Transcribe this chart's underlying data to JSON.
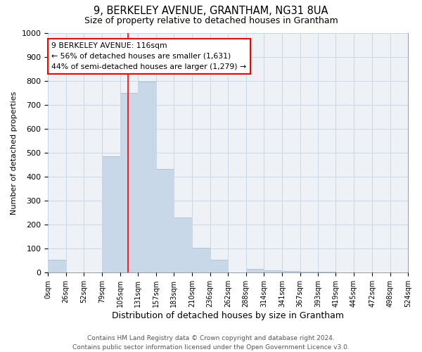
{
  "title": "9, BERKELEY AVENUE, GRANTHAM, NG31 8UA",
  "subtitle": "Size of property relative to detached houses in Grantham",
  "xlabel": "Distribution of detached houses by size in Grantham",
  "ylabel": "Number of detached properties",
  "bar_color": "#c8d8e8",
  "bar_edge_color": "#a8bece",
  "grid_color": "#c8d8e8",
  "background_color": "#eef2f7",
  "bin_edges": [
    0,
    26,
    52,
    79,
    105,
    131,
    157,
    183,
    210,
    236,
    262,
    288,
    314,
    341,
    367,
    393,
    419,
    445,
    472,
    498,
    524
  ],
  "bar_heights": [
    55,
    0,
    0,
    486,
    748,
    795,
    432,
    230,
    105,
    55,
    0,
    15,
    10,
    8,
    5,
    3,
    2,
    2,
    1,
    1
  ],
  "red_line_x": 116,
  "ylim": [
    0,
    1000
  ],
  "yticks": [
    0,
    100,
    200,
    300,
    400,
    500,
    600,
    700,
    800,
    900,
    1000
  ],
  "annotation_text": "9 BERKELEY AVENUE: 116sqm\n← 56% of detached houses are smaller (1,631)\n44% of semi-detached houses are larger (1,279) →",
  "footer_line1": "Contains HM Land Registry data © Crown copyright and database right 2024.",
  "footer_line2": "Contains public sector information licensed under the Open Government Licence v3.0."
}
